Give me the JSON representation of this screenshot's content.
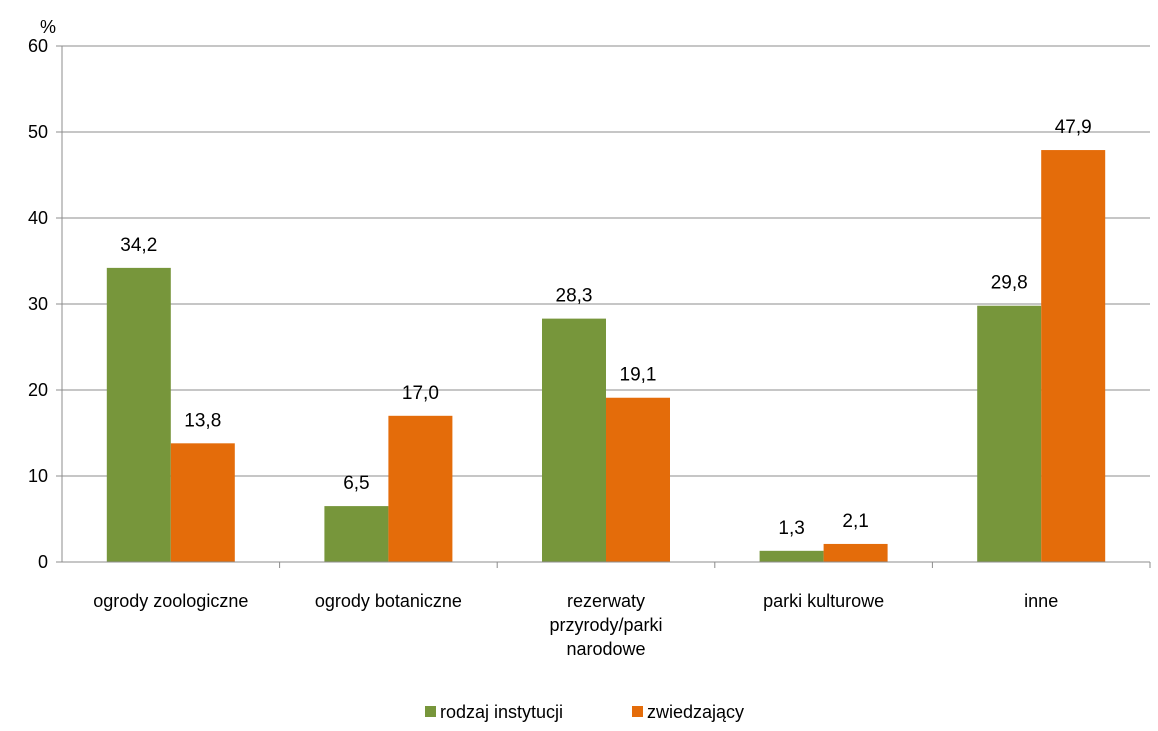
{
  "chart_data": {
    "type": "bar",
    "ylabel": "%",
    "ylim": [
      0,
      60
    ],
    "yticks": [
      0,
      10,
      20,
      30,
      40,
      50,
      60
    ],
    "grid": true,
    "legend_position": "bottom",
    "categories": [
      [
        "ogrody zoologiczne"
      ],
      [
        "ogrody botaniczne"
      ],
      [
        "rezerwaty",
        "przyrody/parki",
        "narodowe"
      ],
      [
        "parki kulturowe"
      ],
      [
        "inne"
      ]
    ],
    "series": [
      {
        "name": "rodzaj instytucji",
        "color": "#77963b",
        "values": [
          34.2,
          6.5,
          28.3,
          1.3,
          29.8
        ],
        "labels": [
          "34,2",
          "6,5",
          "28,3",
          "1,3",
          "29,8"
        ]
      },
      {
        "name": "zwiedzający",
        "color": "#e46c0a",
        "values": [
          13.8,
          17.0,
          19.1,
          2.1,
          47.9
        ],
        "labels": [
          "13,8",
          "17,0",
          "19,1",
          "2,1",
          "47,9"
        ]
      }
    ]
  }
}
